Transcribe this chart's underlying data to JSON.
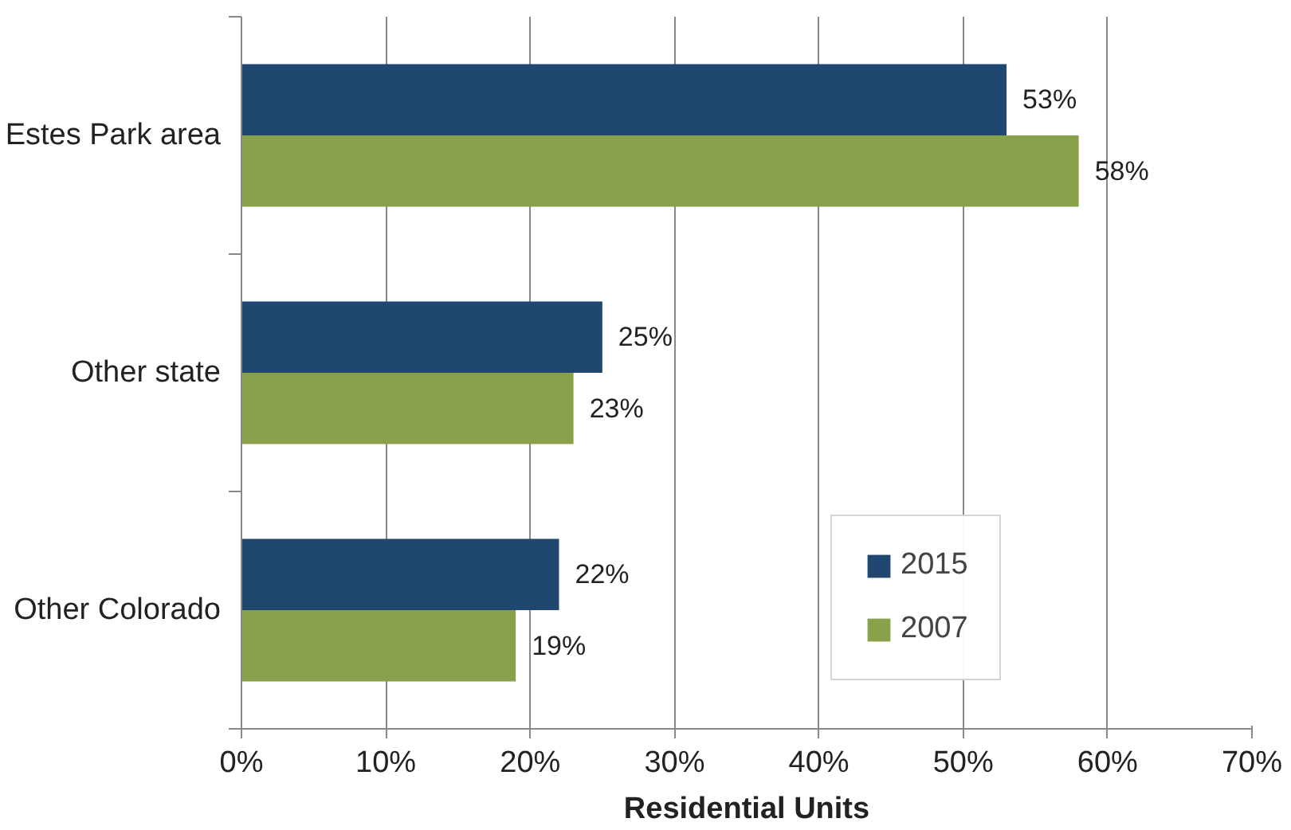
{
  "chart_data": {
    "type": "bar",
    "orientation": "horizontal",
    "xlabel": "Residential Units",
    "categories": [
      "Estes Park area",
      "Other state",
      "Other Colorado"
    ],
    "series": [
      {
        "name": "2015",
        "color": "#1f4770",
        "values": [
          53,
          25,
          22
        ],
        "value_labels": [
          "53%",
          "25%",
          "22%"
        ]
      },
      {
        "name": "2007",
        "color": "#8aa14b",
        "values": [
          58,
          23,
          19
        ],
        "value_labels": [
          "58%",
          "23%",
          "19%"
        ]
      }
    ],
    "xlim": [
      0,
      70
    ],
    "xticks": [
      {
        "value": 0,
        "label": "0%"
      },
      {
        "value": 10,
        "label": "10%"
      },
      {
        "value": 20,
        "label": "20%"
      },
      {
        "value": 30,
        "label": "30%"
      },
      {
        "value": 40,
        "label": "40%"
      },
      {
        "value": 50,
        "label": "50%"
      },
      {
        "value": 60,
        "label": "60%"
      },
      {
        "value": 70,
        "label": "70%"
      }
    ],
    "grid": "x",
    "legend": "bottom right"
  }
}
